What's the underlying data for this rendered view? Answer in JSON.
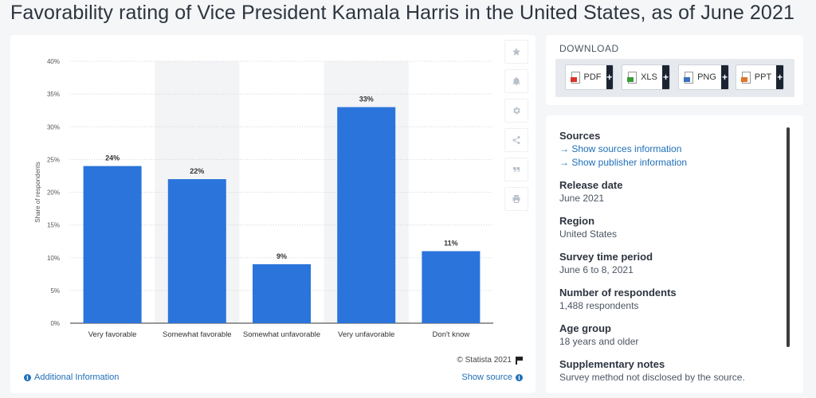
{
  "page": {
    "title": "Favorability rating of Vice President Kamala Harris in the United States, as of June 2021"
  },
  "chart_data": {
    "type": "bar",
    "categories": [
      "Very favorable",
      "Somewhat favorable",
      "Somewhat unfavorable",
      "Very unfavorable",
      "Don't know"
    ],
    "values": [
      24,
      22,
      9,
      33,
      11
    ],
    "value_labels": [
      "24%",
      "22%",
      "9%",
      "33%",
      "11%"
    ],
    "ylabel": "Share of respondents",
    "ylim": [
      0,
      40
    ],
    "yticks": [
      0,
      5,
      10,
      15,
      20,
      25,
      30,
      35,
      40
    ],
    "ytick_labels": [
      "0%",
      "5%",
      "10%",
      "15%",
      "20%",
      "25%",
      "30%",
      "35%",
      "40%"
    ],
    "shaded_categories": [
      1,
      3
    ],
    "bar_color": "#2a74db",
    "shade_color": "#f3f4f6",
    "grid": true
  },
  "toolbar": {
    "icons": [
      "star-icon",
      "bell-icon",
      "gear-icon",
      "share-icon",
      "quote-icon",
      "print-icon"
    ]
  },
  "footer": {
    "credit": "© Statista 2021",
    "additional_info": "Additional Information",
    "show_source": "Show source"
  },
  "download": {
    "title": "DOWNLOAD",
    "buttons": [
      {
        "label": "PDF",
        "color": "#d9342b"
      },
      {
        "label": "XLS",
        "color": "#3a9a3a"
      },
      {
        "label": "PNG",
        "color": "#3b6fc2"
      },
      {
        "label": "PPT",
        "color": "#e0742a"
      }
    ],
    "plus": "+"
  },
  "info": {
    "sources_heading": "Sources",
    "show_sources": "→ Show sources information",
    "show_publisher": "→ Show publisher information",
    "release_heading": "Release date",
    "release_value": "June 2021",
    "region_heading": "Region",
    "region_value": "United States",
    "period_heading": "Survey time period",
    "period_value": "June 6 to 8, 2021",
    "respondents_heading": "Number of respondents",
    "respondents_value": "1,488 respondents",
    "age_heading": "Age group",
    "age_value": "18 years and older",
    "notes_heading": "Supplementary notes",
    "notes_value": "Survey method not disclosed by the source."
  }
}
